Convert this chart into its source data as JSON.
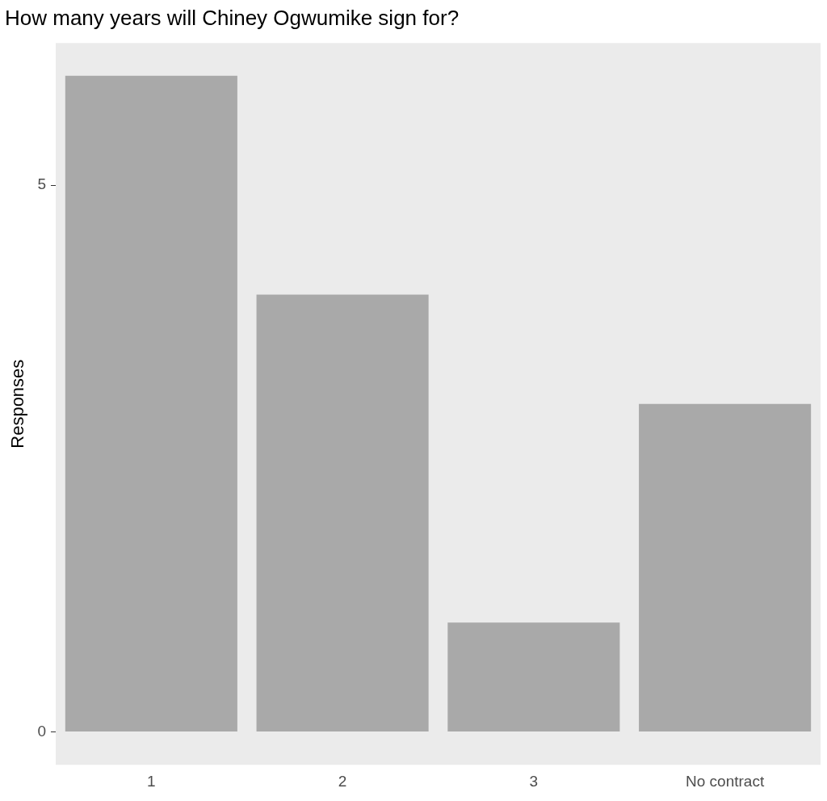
{
  "chart_data": {
    "type": "bar",
    "title": "How many years will Chiney Ogwumike sign for?",
    "ylabel": "Responses",
    "categories": [
      "1",
      "2",
      "3",
      "No contract"
    ],
    "values": [
      6,
      4,
      1,
      3
    ],
    "color": "#a9a9a9",
    "ylim": [
      -0.3,
      6.3
    ],
    "yticks": [
      0,
      5
    ],
    "grid": false
  }
}
